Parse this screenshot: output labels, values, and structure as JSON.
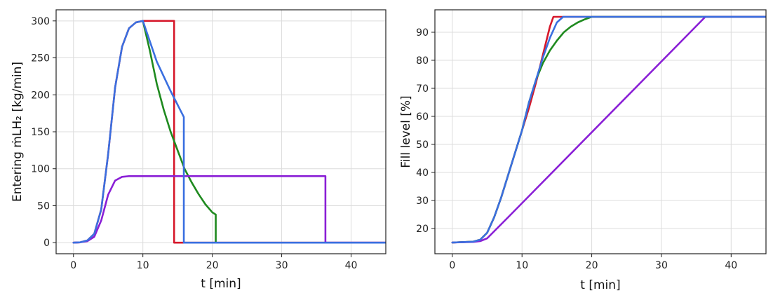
{
  "chart_data": [
    {
      "type": "line",
      "xlabel": "t [min]",
      "ylabel": "Entering ṁLH₂ [kg/min]",
      "xlim": [
        -2.5,
        45
      ],
      "ylim": [
        -15,
        315
      ],
      "xticks": [
        0,
        10,
        20,
        30,
        40
      ],
      "yticks": [
        0,
        50,
        100,
        150,
        200,
        250,
        300
      ],
      "grid": true,
      "series": [
        {
          "color": "#d6182b",
          "points": [
            [
              0,
              0
            ],
            [
              1,
              0.5
            ],
            [
              2,
              3
            ],
            [
              3,
              12
            ],
            [
              4,
              45
            ],
            [
              5,
              120
            ],
            [
              6,
              210
            ],
            [
              7,
              265
            ],
            [
              8,
              290
            ],
            [
              9,
              298
            ],
            [
              10,
              300
            ],
            [
              14.5,
              300
            ],
            [
              14.5,
              0
            ],
            [
              45,
              0
            ]
          ]
        },
        {
          "color": "#1f8a1f",
          "points": [
            [
              10,
              300
            ],
            [
              11,
              260
            ],
            [
              12,
              215
            ],
            [
              13,
              180
            ],
            [
              14,
              150
            ],
            [
              15,
              125
            ],
            [
              16,
              100
            ],
            [
              17,
              82
            ],
            [
              18,
              66
            ],
            [
              19,
              52
            ],
            [
              20,
              41
            ],
            [
              20.5,
              38
            ],
            [
              20.5,
              0
            ]
          ]
        },
        {
          "color": "#8a1fd6",
          "points": [
            [
              0,
              0
            ],
            [
              1,
              0.5
            ],
            [
              2,
              2
            ],
            [
              3,
              8
            ],
            [
              4,
              30
            ],
            [
              5,
              65
            ],
            [
              6,
              84
            ],
            [
              7,
              89
            ],
            [
              8,
              90
            ],
            [
              36.3,
              90
            ],
            [
              36.3,
              0
            ],
            [
              45,
              0
            ]
          ]
        },
        {
          "color": "#3a6fe0",
          "points": [
            [
              0,
              0
            ],
            [
              1,
              0.5
            ],
            [
              2,
              3
            ],
            [
              3,
              12
            ],
            [
              4,
              45
            ],
            [
              5,
              120
            ],
            [
              6,
              210
            ],
            [
              7,
              265
            ],
            [
              8,
              290
            ],
            [
              9,
              298
            ],
            [
              10,
              300
            ],
            [
              12,
              245
            ],
            [
              14,
              205
            ],
            [
              15.9,
              170
            ],
            [
              15.9,
              0
            ],
            [
              45,
              0
            ]
          ]
        }
      ]
    },
    {
      "type": "line",
      "xlabel": "t [min]",
      "ylabel": "Fill level [%]",
      "xlim": [
        -2.5,
        45
      ],
      "ylim": [
        11,
        98
      ],
      "xticks": [
        0,
        10,
        20,
        30,
        40
      ],
      "yticks": [
        20,
        30,
        40,
        50,
        60,
        70,
        80,
        90
      ],
      "grid": true,
      "series": [
        {
          "color": "#d6182b",
          "points": [
            [
              0,
              15
            ],
            [
              3,
              15.3
            ],
            [
              4,
              16
            ],
            [
              5,
              18.5
            ],
            [
              6,
              24
            ],
            [
              7,
              31
            ],
            [
              8,
              39
            ],
            [
              9,
              47
            ],
            [
              10,
              55
            ],
            [
              11,
              63
            ],
            [
              12,
              72
            ],
            [
              13,
              82
            ],
            [
              14,
              92
            ],
            [
              14.5,
              95.5
            ],
            [
              45,
              95.5
            ]
          ]
        },
        {
          "color": "#1f8a1f",
          "points": [
            [
              0,
              15
            ],
            [
              3,
              15.3
            ],
            [
              4,
              16
            ],
            [
              5,
              18.5
            ],
            [
              6,
              24
            ],
            [
              7,
              31
            ],
            [
              8,
              39
            ],
            [
              9,
              47
            ],
            [
              10,
              55
            ],
            [
              11,
              65
            ],
            [
              12,
              73
            ],
            [
              13,
              79
            ],
            [
              14,
              83.5
            ],
            [
              15,
              87
            ],
            [
              16,
              90
            ],
            [
              17,
              92
            ],
            [
              18,
              93.5
            ],
            [
              19,
              94.6
            ],
            [
              20,
              95.5
            ],
            [
              45,
              95.5
            ]
          ]
        },
        {
          "color": "#8a1fd6",
          "points": [
            [
              0,
              15
            ],
            [
              3,
              15.2
            ],
            [
              4,
              15.5
            ],
            [
              5,
              16.5
            ],
            [
              6,
              19
            ],
            [
              7,
              21.5
            ],
            [
              8,
              24
            ],
            [
              36.3,
              95.5
            ],
            [
              45,
              95.5
            ]
          ]
        },
        {
          "color": "#3a6fe0",
          "points": [
            [
              0,
              15
            ],
            [
              3,
              15.3
            ],
            [
              4,
              16
            ],
            [
              5,
              18.5
            ],
            [
              6,
              24
            ],
            [
              7,
              31
            ],
            [
              8,
              39
            ],
            [
              9,
              47
            ],
            [
              10,
              55
            ],
            [
              11,
              65
            ],
            [
              12,
              73
            ],
            [
              13,
              81
            ],
            [
              14,
              88
            ],
            [
              15,
              93.5
            ],
            [
              15.9,
              95.5
            ],
            [
              45,
              95.5
            ]
          ]
        }
      ]
    }
  ]
}
